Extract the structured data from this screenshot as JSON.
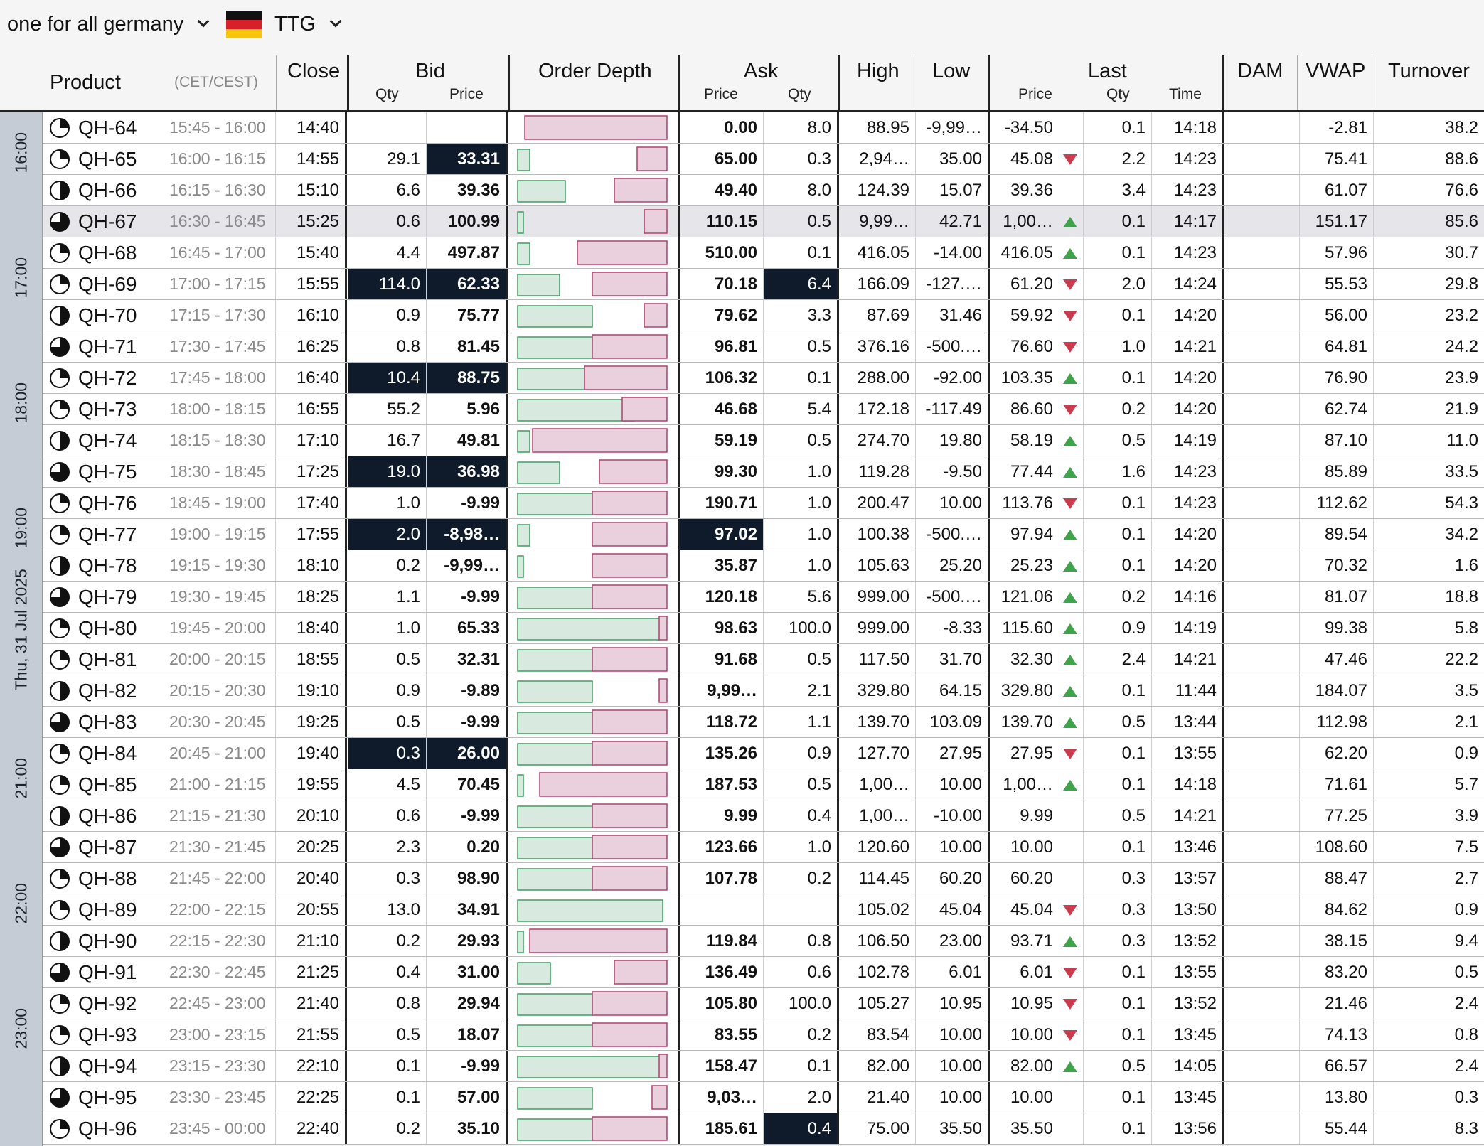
{
  "topbar": {
    "group_label": "one for all germany",
    "market_label": "TTG",
    "flag_icon": "germany-flag-icon"
  },
  "header": {
    "product": "Product",
    "cet": "(CET/CEST)",
    "close": "Close",
    "bid": "Bid",
    "bid_qty": "Qty",
    "bid_price": "Price",
    "order_depth": "Order Depth",
    "ask": "Ask",
    "ask_price": "Price",
    "ask_qty": "Qty",
    "high": "High",
    "low": "Low",
    "last": "Last",
    "last_price": "Price",
    "last_qty": "Qty",
    "last_time": "Time",
    "dam": "DAM",
    "vwap": "VWAP",
    "turnover": "Turnover"
  },
  "timeline": {
    "hours": [
      "16:00",
      "17:00",
      "18:00",
      "19:00",
      "21:00",
      "22:00",
      "23:00"
    ],
    "date": "Thu, 31 Jul 2025"
  },
  "colors": {
    "dark_cell": "#0f1a2b",
    "bid_depth": "#d8eadf",
    "ask_depth": "#ead0dc",
    "up": "#3ea34b",
    "down": "#c93c4e"
  },
  "rows": [
    {
      "name": "QH-64",
      "period": "15:45 - 16:00",
      "close": "14:40",
      "bid_qty": "",
      "bid_price": "",
      "ask_price": "0.00",
      "ask_qty": "8.0",
      "high": "88.95",
      "low": "-9,99…",
      "last_price": "-34.50",
      "trend": "",
      "last_qty": "0.1",
      "last_time": "14:18",
      "dam": "",
      "vwap": "-2.81",
      "turnover": "38.2",
      "bid_fill": 0.0,
      "ask_fill": 0.95,
      "pie": 0.25
    },
    {
      "name": "QH-65",
      "period": "16:00 - 16:15",
      "close": "14:55",
      "bid_qty": "29.1",
      "bid_price": "33.31",
      "ask_price": "65.00",
      "ask_qty": "0.3",
      "high": "2,94…",
      "low": "35.00",
      "last_price": "45.08",
      "trend": "down",
      "last_qty": "2.2",
      "last_time": "14:23",
      "dam": "",
      "vwap": "75.41",
      "turnover": "88.6",
      "bid_fill": 0.08,
      "ask_fill": 0.2,
      "pie": 0.25,
      "dark": [
        "bid_price"
      ]
    },
    {
      "name": "QH-66",
      "period": "16:15 - 16:30",
      "close": "15:10",
      "bid_qty": "6.6",
      "bid_price": "39.36",
      "ask_price": "49.40",
      "ask_qty": "8.0",
      "high": "124.39",
      "low": "15.07",
      "last_price": "39.36",
      "trend": "",
      "last_qty": "3.4",
      "last_time": "14:23",
      "dam": "",
      "vwap": "61.07",
      "turnover": "76.6",
      "bid_fill": 0.32,
      "ask_fill": 0.35,
      "pie": 0.5
    },
    {
      "name": "QH-67",
      "period": "16:30 - 16:45",
      "close": "15:25",
      "bid_qty": "0.6",
      "bid_price": "100.99",
      "ask_price": "110.15",
      "ask_qty": "0.5",
      "high": "9,99…",
      "low": "42.71",
      "last_price": "1,00…",
      "trend": "up",
      "last_qty": "0.1",
      "last_time": "14:17",
      "dam": "",
      "vwap": "151.17",
      "turnover": "85.6",
      "bid_fill": 0.04,
      "ask_fill": 0.15,
      "pie": 0.75,
      "hilite": true
    },
    {
      "name": "QH-68",
      "period": "16:45 - 17:00",
      "close": "15:40",
      "bid_qty": "4.4",
      "bid_price": "497.87",
      "ask_price": "510.00",
      "ask_qty": "0.1",
      "high": "416.05",
      "low": "-14.00",
      "last_price": "416.05",
      "trend": "up",
      "last_qty": "0.1",
      "last_time": "14:23",
      "dam": "",
      "vwap": "57.96",
      "turnover": "30.7",
      "bid_fill": 0.08,
      "ask_fill": 0.6,
      "pie": 0.25
    },
    {
      "name": "QH-69",
      "period": "17:00 - 17:15",
      "close": "15:55",
      "bid_qty": "114.0",
      "bid_price": "62.33",
      "ask_price": "70.18",
      "ask_qty": "6.4",
      "high": "166.09",
      "low": "-127.…",
      "last_price": "61.20",
      "trend": "down",
      "last_qty": "2.0",
      "last_time": "14:24",
      "dam": "",
      "vwap": "55.53",
      "turnover": "29.8",
      "bid_fill": 0.28,
      "ask_fill": 0.5,
      "pie": 0.25,
      "dark": [
        "bid_qty",
        "bid_price",
        "ask_qty"
      ]
    },
    {
      "name": "QH-70",
      "period": "17:15 - 17:30",
      "close": "16:10",
      "bid_qty": "0.9",
      "bid_price": "75.77",
      "ask_price": "79.62",
      "ask_qty": "3.3",
      "high": "87.69",
      "low": "31.46",
      "last_price": "59.92",
      "trend": "down",
      "last_qty": "0.1",
      "last_time": "14:20",
      "dam": "",
      "vwap": "56.00",
      "turnover": "23.2",
      "bid_fill": 0.5,
      "ask_fill": 0.15,
      "pie": 0.5
    },
    {
      "name": "QH-71",
      "period": "17:30 - 17:45",
      "close": "16:25",
      "bid_qty": "0.8",
      "bid_price": "81.45",
      "ask_price": "96.81",
      "ask_qty": "0.5",
      "high": "376.16",
      "low": "-500.…",
      "last_price": "76.60",
      "trend": "down",
      "last_qty": "1.0",
      "last_time": "14:21",
      "dam": "",
      "vwap": "64.81",
      "turnover": "24.2",
      "bid_fill": 0.5,
      "ask_fill": 0.5,
      "pie": 0.75
    },
    {
      "name": "QH-72",
      "period": "17:45 - 18:00",
      "close": "16:40",
      "bid_qty": "10.4",
      "bid_price": "88.75",
      "ask_price": "106.32",
      "ask_qty": "0.1",
      "high": "288.00",
      "low": "-92.00",
      "last_price": "103.35",
      "trend": "up",
      "last_qty": "0.1",
      "last_time": "14:20",
      "dam": "",
      "vwap": "76.90",
      "turnover": "23.9",
      "bid_fill": 0.45,
      "ask_fill": 0.55,
      "pie": 0.25,
      "dark": [
        "bid_qty",
        "bid_price"
      ]
    },
    {
      "name": "QH-73",
      "period": "18:00 - 18:15",
      "close": "16:55",
      "bid_qty": "55.2",
      "bid_price": "5.96",
      "ask_price": "46.68",
      "ask_qty": "5.4",
      "high": "172.18",
      "low": "-117.49",
      "last_price": "86.60",
      "trend": "down",
      "last_qty": "0.2",
      "last_time": "14:20",
      "dam": "",
      "vwap": "62.74",
      "turnover": "21.9",
      "bid_fill": 0.78,
      "ask_fill": 0.3,
      "pie": 0.25
    },
    {
      "name": "QH-74",
      "period": "18:15 - 18:30",
      "close": "17:10",
      "bid_qty": "16.7",
      "bid_price": "49.81",
      "ask_price": "59.19",
      "ask_qty": "0.5",
      "high": "274.70",
      "low": "19.80",
      "last_price": "58.19",
      "trend": "up",
      "last_qty": "0.5",
      "last_time": "14:19",
      "dam": "",
      "vwap": "87.10",
      "turnover": "11.0",
      "bid_fill": 0.08,
      "ask_fill": 0.9,
      "pie": 0.5
    },
    {
      "name": "QH-75",
      "period": "18:30 - 18:45",
      "close": "17:25",
      "bid_qty": "19.0",
      "bid_price": "36.98",
      "ask_price": "99.30",
      "ask_qty": "1.0",
      "high": "119.28",
      "low": "-9.50",
      "last_price": "77.44",
      "trend": "up",
      "last_qty": "1.6",
      "last_time": "14:23",
      "dam": "",
      "vwap": "85.89",
      "turnover": "33.5",
      "bid_fill": 0.28,
      "ask_fill": 0.45,
      "pie": 0.75,
      "dark": [
        "bid_qty",
        "bid_price"
      ]
    },
    {
      "name": "QH-76",
      "period": "18:45 - 19:00",
      "close": "17:40",
      "bid_qty": "1.0",
      "bid_price": "-9.99",
      "ask_price": "190.71",
      "ask_qty": "1.0",
      "high": "200.47",
      "low": "10.00",
      "last_price": "113.76",
      "trend": "down",
      "last_qty": "0.1",
      "last_time": "14:23",
      "dam": "",
      "vwap": "112.62",
      "turnover": "54.3",
      "bid_fill": 0.5,
      "ask_fill": 0.5,
      "pie": 0.25
    },
    {
      "name": "QH-77",
      "period": "19:00 - 19:15",
      "close": "17:55",
      "bid_qty": "2.0",
      "bid_price": "-8,98…",
      "ask_price": "97.02",
      "ask_qty": "1.0",
      "high": "100.38",
      "low": "-500.…",
      "last_price": "97.94",
      "trend": "up",
      "last_qty": "0.1",
      "last_time": "14:20",
      "dam": "",
      "vwap": "89.54",
      "turnover": "34.2",
      "bid_fill": 0.08,
      "ask_fill": 0.5,
      "pie": 0.25,
      "dark": [
        "bid_qty",
        "bid_price",
        "ask_price"
      ]
    },
    {
      "name": "QH-78",
      "period": "19:15 - 19:30",
      "close": "18:10",
      "bid_qty": "0.2",
      "bid_price": "-9,99…",
      "ask_price": "35.87",
      "ask_qty": "1.0",
      "high": "105.63",
      "low": "25.20",
      "last_price": "25.23",
      "trend": "up",
      "last_qty": "0.1",
      "last_time": "14:20",
      "dam": "",
      "vwap": "70.32",
      "turnover": "1.6",
      "bid_fill": 0.04,
      "ask_fill": 0.5,
      "pie": 0.5
    },
    {
      "name": "QH-79",
      "period": "19:30 - 19:45",
      "close": "18:25",
      "bid_qty": "1.1",
      "bid_price": "-9.99",
      "ask_price": "120.18",
      "ask_qty": "5.6",
      "high": "999.00",
      "low": "-500.…",
      "last_price": "121.06",
      "trend": "up",
      "last_qty": "0.2",
      "last_time": "14:16",
      "dam": "",
      "vwap": "81.07",
      "turnover": "18.8",
      "bid_fill": 0.5,
      "ask_fill": 0.5,
      "pie": 0.75
    },
    {
      "name": "QH-80",
      "period": "19:45 - 20:00",
      "close": "18:40",
      "bid_qty": "1.0",
      "bid_price": "65.33",
      "ask_price": "98.63",
      "ask_qty": "100.0",
      "high": "999.00",
      "low": "-8.33",
      "last_price": "115.60",
      "trend": "up",
      "last_qty": "0.9",
      "last_time": "14:19",
      "dam": "",
      "vwap": "99.38",
      "turnover": "5.8",
      "bid_fill": 0.95,
      "ask_fill": 0.05,
      "pie": 0.25
    },
    {
      "name": "QH-81",
      "period": "20:00 - 20:15",
      "close": "18:55",
      "bid_qty": "0.5",
      "bid_price": "32.31",
      "ask_price": "91.68",
      "ask_qty": "0.5",
      "high": "117.50",
      "low": "31.70",
      "last_price": "32.30",
      "trend": "up",
      "last_qty": "2.4",
      "last_time": "14:21",
      "dam": "",
      "vwap": "47.46",
      "turnover": "22.2",
      "bid_fill": 0.5,
      "ask_fill": 0.5,
      "pie": 0.25
    },
    {
      "name": "QH-82",
      "period": "20:15 - 20:30",
      "close": "19:10",
      "bid_qty": "0.9",
      "bid_price": "-9.89",
      "ask_price": "9,99…",
      "ask_qty": "2.1",
      "high": "329.80",
      "low": "64.15",
      "last_price": "329.80",
      "trend": "up",
      "last_qty": "0.1",
      "last_time": "11:44",
      "dam": "",
      "vwap": "184.07",
      "turnover": "3.5",
      "bid_fill": 0.5,
      "ask_fill": 0.05,
      "pie": 0.5
    },
    {
      "name": "QH-83",
      "period": "20:30 - 20:45",
      "close": "19:25",
      "bid_qty": "0.5",
      "bid_price": "-9.99",
      "ask_price": "118.72",
      "ask_qty": "1.1",
      "high": "139.70",
      "low": "103.09",
      "last_price": "139.70",
      "trend": "up",
      "last_qty": "0.5",
      "last_time": "13:44",
      "dam": "",
      "vwap": "112.98",
      "turnover": "2.1",
      "bid_fill": 0.5,
      "ask_fill": 0.5,
      "pie": 0.75
    },
    {
      "name": "QH-84",
      "period": "20:45 - 21:00",
      "close": "19:40",
      "bid_qty": "0.3",
      "bid_price": "26.00",
      "ask_price": "135.26",
      "ask_qty": "0.9",
      "high": "127.70",
      "low": "27.95",
      "last_price": "27.95",
      "trend": "down",
      "last_qty": "0.1",
      "last_time": "13:55",
      "dam": "",
      "vwap": "62.20",
      "turnover": "0.9",
      "bid_fill": 0.5,
      "ask_fill": 0.5,
      "pie": 0.25,
      "dark": [
        "bid_qty",
        "bid_price"
      ]
    },
    {
      "name": "QH-85",
      "period": "21:00 - 21:15",
      "close": "19:55",
      "bid_qty": "4.5",
      "bid_price": "70.45",
      "ask_price": "187.53",
      "ask_qty": "0.5",
      "high": "1,00…",
      "low": "10.00",
      "last_price": "1,00…",
      "trend": "up",
      "last_qty": "0.1",
      "last_time": "14:18",
      "dam": "",
      "vwap": "71.61",
      "turnover": "5.7",
      "bid_fill": 0.04,
      "ask_fill": 0.85,
      "pie": 0.25
    },
    {
      "name": "QH-86",
      "period": "21:15 - 21:30",
      "close": "20:10",
      "bid_qty": "0.6",
      "bid_price": "-9.99",
      "ask_price": "9.99",
      "ask_qty": "0.4",
      "high": "1,00…",
      "low": "-10.00",
      "last_price": "9.99",
      "trend": "",
      "last_qty": "0.5",
      "last_time": "14:21",
      "dam": "",
      "vwap": "77.25",
      "turnover": "3.9",
      "bid_fill": 0.5,
      "ask_fill": 0.5,
      "pie": 0.5
    },
    {
      "name": "QH-87",
      "period": "21:30 - 21:45",
      "close": "20:25",
      "bid_qty": "2.3",
      "bid_price": "0.20",
      "ask_price": "123.66",
      "ask_qty": "1.0",
      "high": "120.60",
      "low": "10.00",
      "last_price": "10.00",
      "trend": "",
      "last_qty": "0.1",
      "last_time": "13:46",
      "dam": "",
      "vwap": "108.60",
      "turnover": "7.5",
      "bid_fill": 0.5,
      "ask_fill": 0.5,
      "pie": 0.75
    },
    {
      "name": "QH-88",
      "period": "21:45 - 22:00",
      "close": "20:40",
      "bid_qty": "0.3",
      "bid_price": "98.90",
      "ask_price": "107.78",
      "ask_qty": "0.2",
      "high": "114.45",
      "low": "60.20",
      "last_price": "60.20",
      "trend": "",
      "last_qty": "0.3",
      "last_time": "13:57",
      "dam": "",
      "vwap": "88.47",
      "turnover": "2.7",
      "bid_fill": 0.5,
      "ask_fill": 0.5,
      "pie": 0.25
    },
    {
      "name": "QH-89",
      "period": "22:00 - 22:15",
      "close": "20:55",
      "bid_qty": "13.0",
      "bid_price": "34.91",
      "ask_price": "",
      "ask_qty": "",
      "high": "105.02",
      "low": "45.04",
      "last_price": "45.04",
      "trend": "down",
      "last_qty": "0.3",
      "last_time": "13:50",
      "dam": "",
      "vwap": "84.62",
      "turnover": "0.9",
      "bid_fill": 0.97,
      "ask_fill": 0.0,
      "pie": 0.25
    },
    {
      "name": "QH-90",
      "period": "22:15 - 22:30",
      "close": "21:10",
      "bid_qty": "0.2",
      "bid_price": "29.93",
      "ask_price": "119.84",
      "ask_qty": "0.8",
      "high": "106.50",
      "low": "23.00",
      "last_price": "93.71",
      "trend": "up",
      "last_qty": "0.3",
      "last_time": "13:52",
      "dam": "",
      "vwap": "38.15",
      "turnover": "9.4",
      "bid_fill": 0.04,
      "ask_fill": 0.92,
      "pie": 0.5
    },
    {
      "name": "QH-91",
      "period": "22:30 - 22:45",
      "close": "21:25",
      "bid_qty": "0.4",
      "bid_price": "31.00",
      "ask_price": "136.49",
      "ask_qty": "0.6",
      "high": "102.78",
      "low": "6.01",
      "last_price": "6.01",
      "trend": "down",
      "last_qty": "0.1",
      "last_time": "13:55",
      "dam": "",
      "vwap": "83.20",
      "turnover": "0.5",
      "bid_fill": 0.22,
      "ask_fill": 0.35,
      "pie": 0.75
    },
    {
      "name": "QH-92",
      "period": "22:45 - 23:00",
      "close": "21:40",
      "bid_qty": "0.8",
      "bid_price": "29.94",
      "ask_price": "105.80",
      "ask_qty": "100.0",
      "high": "105.27",
      "low": "10.95",
      "last_price": "10.95",
      "trend": "down",
      "last_qty": "0.1",
      "last_time": "13:52",
      "dam": "",
      "vwap": "21.46",
      "turnover": "2.4",
      "bid_fill": 0.5,
      "ask_fill": 0.5,
      "pie": 0.25
    },
    {
      "name": "QH-93",
      "period": "23:00 - 23:15",
      "close": "21:55",
      "bid_qty": "0.5",
      "bid_price": "18.07",
      "ask_price": "83.55",
      "ask_qty": "0.2",
      "high": "83.54",
      "low": "10.00",
      "last_price": "10.00",
      "trend": "down",
      "last_qty": "0.1",
      "last_time": "13:45",
      "dam": "",
      "vwap": "74.13",
      "turnover": "0.8",
      "bid_fill": 0.5,
      "ask_fill": 0.5,
      "pie": 0.25
    },
    {
      "name": "QH-94",
      "period": "23:15 - 23:30",
      "close": "22:10",
      "bid_qty": "0.1",
      "bid_price": "-9.99",
      "ask_price": "158.47",
      "ask_qty": "0.1",
      "high": "82.00",
      "low": "10.00",
      "last_price": "82.00",
      "trend": "up",
      "last_qty": "0.5",
      "last_time": "14:05",
      "dam": "",
      "vwap": "66.57",
      "turnover": "2.4",
      "bid_fill": 0.95,
      "ask_fill": 0.05,
      "pie": 0.5
    },
    {
      "name": "QH-95",
      "period": "23:30 - 23:45",
      "close": "22:25",
      "bid_qty": "0.1",
      "bid_price": "57.00",
      "ask_price": "9,03…",
      "ask_qty": "2.0",
      "high": "21.40",
      "low": "10.00",
      "last_price": "10.00",
      "trend": "",
      "last_qty": "0.1",
      "last_time": "13:45",
      "dam": "",
      "vwap": "13.80",
      "turnover": "0.3",
      "bid_fill": 0.5,
      "ask_fill": 0.1,
      "pie": 0.75
    },
    {
      "name": "QH-96",
      "period": "23:45 - 00:00",
      "close": "22:40",
      "bid_qty": "0.2",
      "bid_price": "35.10",
      "ask_price": "185.61",
      "ask_qty": "0.4",
      "high": "75.00",
      "low": "35.50",
      "last_price": "35.50",
      "trend": "",
      "last_qty": "0.1",
      "last_time": "13:56",
      "dam": "",
      "vwap": "55.44",
      "turnover": "8.3",
      "bid_fill": 0.5,
      "ask_fill": 0.5,
      "pie": 0.25,
      "dark": [
        "ask_qty"
      ]
    }
  ]
}
